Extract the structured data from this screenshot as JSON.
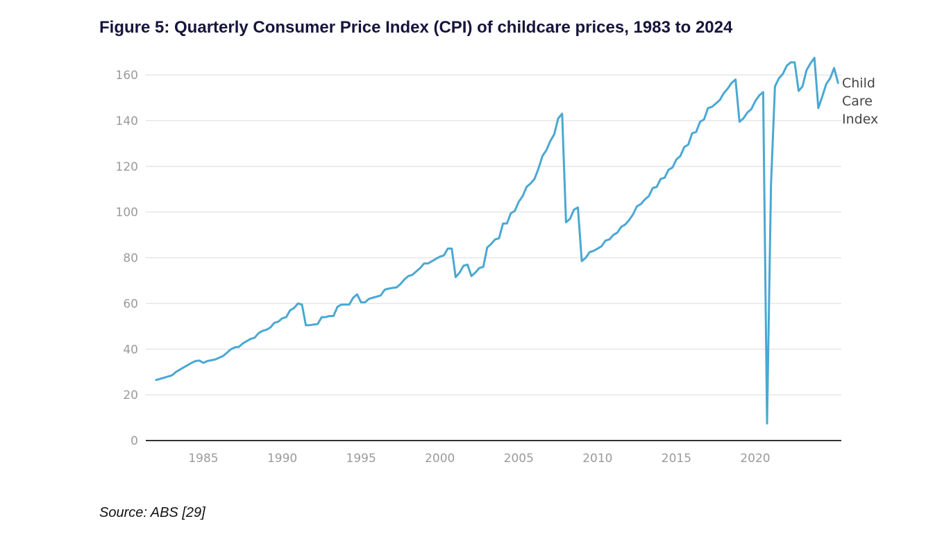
{
  "figure": {
    "title": "Figure 5: Quarterly Consumer Price Index (CPI) of childcare prices, 1983 to 2024",
    "source": "Source: ABS [29]"
  },
  "chart_data": {
    "type": "line",
    "title": "Figure 5: Quarterly Consumer Price Index (CPI) of childcare prices, 1983 to 2024",
    "xlabel": "",
    "ylabel": "",
    "xlim": [
      1982.0,
      2025.25
    ],
    "ylim": [
      0,
      170
    ],
    "x_ticks": [
      1985,
      1990,
      1995,
      2000,
      2005,
      2010,
      2015,
      2020
    ],
    "y_ticks": [
      0,
      20,
      40,
      60,
      80,
      100,
      120,
      140,
      160
    ],
    "grid": "horizontal",
    "series_label_lines": [
      "Child",
      "Care",
      "Index"
    ],
    "line_color": "#4aa8d2",
    "series": [
      {
        "name": "Child Care Index",
        "points": [
          [
            1982.0,
            26.5
          ],
          [
            1982.5,
            27.5
          ],
          [
            1983.0,
            28.5
          ],
          [
            1983.25,
            30.0
          ],
          [
            1983.5,
            31.0
          ],
          [
            1983.75,
            32.0
          ],
          [
            1984.0,
            33.0
          ],
          [
            1984.25,
            34.0
          ],
          [
            1984.5,
            34.8
          ],
          [
            1984.75,
            35.0
          ],
          [
            1985.0,
            34.0
          ],
          [
            1985.25,
            34.8
          ],
          [
            1985.75,
            35.5
          ],
          [
            1986.25,
            37.0
          ],
          [
            1986.5,
            38.5
          ],
          [
            1986.75,
            40.0
          ],
          [
            1987.0,
            40.8
          ],
          [
            1987.25,
            41.0
          ],
          [
            1987.5,
            42.5
          ],
          [
            1987.75,
            43.5
          ],
          [
            1988.0,
            44.5
          ],
          [
            1988.25,
            45.0
          ],
          [
            1988.5,
            47.0
          ],
          [
            1988.75,
            48.0
          ],
          [
            1989.0,
            48.5
          ],
          [
            1989.25,
            49.5
          ],
          [
            1989.5,
            51.5
          ],
          [
            1989.75,
            52.0
          ],
          [
            1990.0,
            53.5
          ],
          [
            1990.25,
            54.0
          ],
          [
            1990.5,
            57.0
          ],
          [
            1990.75,
            58.0
          ],
          [
            1991.0,
            60.0
          ],
          [
            1991.25,
            59.5
          ],
          [
            1991.5,
            50.5
          ],
          [
            1991.75,
            50.5
          ],
          [
            1992.0,
            50.8
          ],
          [
            1992.25,
            51.0
          ],
          [
            1992.5,
            54.0
          ],
          [
            1992.75,
            54.0
          ],
          [
            1993.0,
            54.5
          ],
          [
            1993.25,
            54.5
          ],
          [
            1993.5,
            58.5
          ],
          [
            1993.75,
            59.5
          ],
          [
            1994.0,
            59.5
          ],
          [
            1994.25,
            59.5
          ],
          [
            1994.5,
            62.5
          ],
          [
            1994.75,
            64.0
          ],
          [
            1995.0,
            60.5
          ],
          [
            1995.25,
            60.5
          ],
          [
            1995.5,
            62.0
          ],
          [
            1995.75,
            62.5
          ],
          [
            1996.0,
            63.0
          ],
          [
            1996.25,
            63.5
          ],
          [
            1996.5,
            66.0
          ],
          [
            1996.75,
            66.5
          ],
          [
            1997.0,
            66.8
          ],
          [
            1997.25,
            67.0
          ],
          [
            1997.5,
            68.5
          ],
          [
            1997.75,
            70.5
          ],
          [
            1998.0,
            72.0
          ],
          [
            1998.25,
            72.5
          ],
          [
            1998.5,
            74.0
          ],
          [
            1998.75,
            75.5
          ],
          [
            1999.0,
            77.5
          ],
          [
            1999.25,
            77.5
          ],
          [
            1999.5,
            78.5
          ],
          [
            1999.75,
            79.5
          ],
          [
            2000.0,
            80.5
          ],
          [
            2000.25,
            81.0
          ],
          [
            2000.5,
            84.0
          ],
          [
            2000.75,
            84.0
          ],
          [
            2001.0,
            71.5
          ],
          [
            2001.25,
            73.5
          ],
          [
            2001.5,
            76.5
          ],
          [
            2001.75,
            77.0
          ],
          [
            2002.0,
            72.0
          ],
          [
            2002.25,
            73.5
          ],
          [
            2002.5,
            75.5
          ],
          [
            2002.75,
            76.0
          ],
          [
            2003.0,
            84.5
          ],
          [
            2003.25,
            86.0
          ],
          [
            2003.5,
            88.0
          ],
          [
            2003.75,
            88.5
          ],
          [
            2004.0,
            95.0
          ],
          [
            2004.25,
            95.0
          ],
          [
            2004.5,
            99.5
          ],
          [
            2004.75,
            100.5
          ],
          [
            2005.0,
            104.5
          ],
          [
            2005.25,
            107.0
          ],
          [
            2005.5,
            111.0
          ],
          [
            2005.75,
            112.5
          ],
          [
            2006.0,
            114.5
          ],
          [
            2006.25,
            119.0
          ],
          [
            2006.5,
            124.5
          ],
          [
            2006.75,
            127.0
          ],
          [
            2007.0,
            131.0
          ],
          [
            2007.25,
            134.0
          ],
          [
            2007.5,
            141.0
          ],
          [
            2007.75,
            143.0
          ],
          [
            2008.0,
            95.5
          ],
          [
            2008.25,
            97.0
          ],
          [
            2008.5,
            101.0
          ],
          [
            2008.75,
            102.0
          ],
          [
            2009.0,
            78.5
          ],
          [
            2009.25,
            80.0
          ],
          [
            2009.5,
            82.5
          ],
          [
            2009.75,
            83.0
          ],
          [
            2010.0,
            84.0
          ],
          [
            2010.25,
            85.0
          ],
          [
            2010.5,
            87.5
          ],
          [
            2010.75,
            88.0
          ],
          [
            2011.0,
            90.0
          ],
          [
            2011.25,
            91.0
          ],
          [
            2011.5,
            93.5
          ],
          [
            2011.75,
            94.5
          ],
          [
            2012.0,
            96.5
          ],
          [
            2012.25,
            99.0
          ],
          [
            2012.5,
            102.5
          ],
          [
            2012.75,
            103.5
          ],
          [
            2013.0,
            105.5
          ],
          [
            2013.25,
            107.0
          ],
          [
            2013.5,
            110.5
          ],
          [
            2013.75,
            111.0
          ],
          [
            2014.0,
            114.5
          ],
          [
            2014.25,
            115.0
          ],
          [
            2014.5,
            118.5
          ],
          [
            2014.75,
            119.5
          ],
          [
            2015.0,
            123.0
          ],
          [
            2015.25,
            124.5
          ],
          [
            2015.5,
            128.5
          ],
          [
            2015.75,
            129.5
          ],
          [
            2016.0,
            134.5
          ],
          [
            2016.25,
            135.0
          ],
          [
            2016.5,
            139.5
          ],
          [
            2016.75,
            140.5
          ],
          [
            2017.0,
            145.5
          ],
          [
            2017.25,
            146.0
          ],
          [
            2017.5,
            147.5
          ],
          [
            2017.75,
            149.0
          ],
          [
            2018.0,
            152.0
          ],
          [
            2018.25,
            154.0
          ],
          [
            2018.5,
            156.5
          ],
          [
            2018.75,
            158.0
          ],
          [
            2019.0,
            139.5
          ],
          [
            2019.25,
            141.0
          ],
          [
            2019.5,
            143.5
          ],
          [
            2019.75,
            145.0
          ],
          [
            2020.0,
            148.5
          ],
          [
            2020.25,
            151.0
          ],
          [
            2020.5,
            152.5
          ],
          [
            2020.75,
            7.5
          ],
          [
            2021.0,
            112.0
          ],
          [
            2021.25,
            155.0
          ],
          [
            2021.5,
            158.5
          ],
          [
            2021.75,
            160.5
          ],
          [
            2022.0,
            164.0
          ],
          [
            2022.25,
            165.5
          ],
          [
            2022.5,
            165.5
          ],
          [
            2022.75,
            153.0
          ],
          [
            2023.0,
            155.0
          ],
          [
            2023.25,
            162.0
          ],
          [
            2023.5,
            165.0
          ],
          [
            2023.75,
            167.5
          ],
          [
            2024.0,
            145.5
          ],
          [
            2024.25,
            150.5
          ],
          [
            2024.5,
            156.0
          ],
          [
            2024.75,
            158.5
          ],
          [
            2025.0,
            163.0
          ],
          [
            2025.25,
            156.5
          ]
        ]
      }
    ]
  }
}
